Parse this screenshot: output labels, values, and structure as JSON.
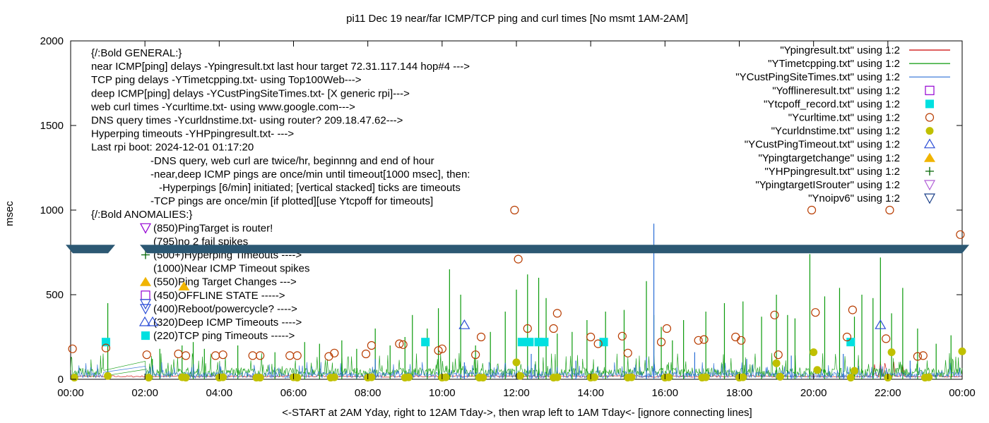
{
  "chart_data": {
    "type": "scatter",
    "title": "pi11 Dec 19  near/far ICMP/TCP ping and curl times [No msmt 1AM-2AM]",
    "xlabel": "<-START at 2AM Yday, right to 12AM Tday->, then wrap left to 1AM Tday<- [ignore connecting lines]",
    "ylabel": "msec",
    "xlim": [
      0,
      24
    ],
    "ylim": [
      0,
      2000
    ],
    "x_tick_labels": [
      "00:00",
      "02:00",
      "04:00",
      "06:00",
      "08:00",
      "10:00",
      "12:00",
      "14:00",
      "16:00",
      "18:00",
      "20:00",
      "22:00",
      "00:00"
    ],
    "y_tick_labels": [
      "0",
      "500",
      "1000",
      "1500",
      "2000"
    ],
    "grid": false,
    "legend_position": "top-right",
    "annotations": [
      "{/:Bold GENERAL:}",
      "near ICMP[ping] delays -Ypingresult.txt last hour target 72.31.117.144 hop#4 --->",
      "TCP ping delays -YTimetcpping.txt- using Top100Web--->",
      "deep ICMP[ping] delays -YCustPingSiteTimes.txt- [X generic rpi]--->",
      "web curl times -Ycurltime.txt- using www.google.com--->",
      "DNS query times -Ycurldnstime.txt- using router? 209.18.47.62--->",
      "Hyperping timeouts -YHPpingresult.txt- --->",
      "Last rpi boot: 2024-12-01 01:17:20",
      "-DNS query, web curl are twice/hr, beginnng and end of hour",
      "-near,deep ICMP pings are once/min until timeout[1000 msec], then:",
      "-Hyperpings [6/min] initiated; [vertical stacked] ticks are timeouts",
      "-TCP pings are once/min [if plotted][use Ytcpoff for timeouts]",
      "{/:Bold ANOMALIES:}",
      "(850)PingTarget is router!",
      "(795)no 2 fail spikes",
      "(500+)Hyperping Timeouts ---->",
      "(1000)Near ICMP Timeout spikes",
      "(550)Ping Target Changes --->",
      "(450)OFFLINE STATE ----->",
      "(400)Reboot/powercycle? ---->",
      "(320)Deep ICMP Timeouts ---->",
      "(220)TCP ping Timeouts ----->"
    ],
    "series": [
      {
        "name": "\"Ypingresult.txt\" using 1:2",
        "style": "line",
        "color": "#cc0000",
        "baseline": 12
      },
      {
        "name": "\"YTimetcpping.txt\" using 1:2",
        "style": "line",
        "color": "#0a9a0a",
        "spikes": [
          [
            1.0,
            450
          ],
          [
            2.2,
            120
          ],
          [
            2.4,
            180
          ],
          [
            3.0,
            200
          ],
          [
            3.3,
            220
          ],
          [
            3.6,
            180
          ],
          [
            4.5,
            200
          ],
          [
            5.5,
            160
          ],
          [
            6.3,
            220
          ],
          [
            6.7,
            210
          ],
          [
            7.3,
            230
          ],
          [
            7.7,
            180
          ],
          [
            8.2,
            300
          ],
          [
            8.6,
            200
          ],
          [
            9.0,
            250
          ],
          [
            9.2,
            380
          ],
          [
            9.6,
            300
          ],
          [
            9.9,
            420
          ],
          [
            10.2,
            650
          ],
          [
            10.5,
            500
          ],
          [
            10.9,
            200
          ],
          [
            11.3,
            280
          ],
          [
            11.7,
            400
          ],
          [
            12.0,
            530
          ],
          [
            12.3,
            620
          ],
          [
            12.6,
            600
          ],
          [
            12.8,
            480
          ],
          [
            13.1,
            270
          ],
          [
            13.5,
            280
          ],
          [
            13.9,
            350
          ],
          [
            14.4,
            400
          ],
          [
            14.9,
            410
          ],
          [
            15.5,
            580
          ],
          [
            15.7,
            380
          ],
          [
            15.9,
            310
          ],
          [
            16.2,
            230
          ],
          [
            16.5,
            350
          ],
          [
            17.1,
            400
          ],
          [
            17.6,
            450
          ],
          [
            18.1,
            460
          ],
          [
            18.6,
            370
          ],
          [
            19.0,
            500
          ],
          [
            19.3,
            380
          ],
          [
            19.5,
            360
          ],
          [
            19.9,
            740
          ],
          [
            20.3,
            490
          ],
          [
            20.7,
            540
          ],
          [
            21.1,
            370
          ],
          [
            21.3,
            500
          ],
          [
            21.6,
            480
          ],
          [
            21.8,
            720
          ],
          [
            22.1,
            390
          ],
          [
            22.4,
            540
          ],
          [
            22.8,
            300
          ],
          [
            23.3,
            210
          ],
          [
            23.7,
            260
          ]
        ]
      },
      {
        "name": "\"YCustPingSiteTimes.txt\" using 1:2",
        "style": "line",
        "color": "#2b6fd6",
        "spikes": [
          [
            8.2,
            120
          ],
          [
            10.6,
            100
          ],
          [
            12.4,
            150
          ],
          [
            13.6,
            110
          ],
          [
            15.5,
            130
          ],
          [
            15.7,
            920
          ],
          [
            16.8,
            160
          ],
          [
            18.2,
            120
          ],
          [
            19.4,
            140
          ],
          [
            20.8,
            150
          ],
          [
            22.6,
            110
          ]
        ]
      },
      {
        "name": "\"Yofflineresult.txt\" using 1:2",
        "marker": "open-square",
        "color": "#9400d3",
        "points": []
      },
      {
        "name": "\"Ytcpoff_record.txt\" using 1:2",
        "marker": "filled-square",
        "color": "#00e0e0",
        "points": [
          [
            0.95,
            220
          ],
          [
            9.55,
            220
          ],
          [
            12.15,
            220
          ],
          [
            12.35,
            220
          ],
          [
            12.6,
            220
          ],
          [
            12.75,
            220
          ],
          [
            14.35,
            220
          ],
          [
            21.0,
            220
          ]
        ]
      },
      {
        "name": "\"Ycurltime.txt\" using 1:2",
        "marker": "open-circle",
        "color": "#b83c00",
        "points": [
          [
            0.05,
            180
          ],
          [
            0.95,
            185
          ],
          [
            2.05,
            145
          ],
          [
            2.9,
            150
          ],
          [
            3.1,
            140
          ],
          [
            3.9,
            140
          ],
          [
            4.1,
            145
          ],
          [
            4.9,
            140
          ],
          [
            5.1,
            140
          ],
          [
            5.9,
            140
          ],
          [
            6.1,
            140
          ],
          [
            6.95,
            135
          ],
          [
            7.1,
            155
          ],
          [
            7.95,
            150
          ],
          [
            8.1,
            200
          ],
          [
            8.85,
            210
          ],
          [
            8.95,
            205
          ],
          [
            9.9,
            170
          ],
          [
            10.0,
            180
          ],
          [
            10.9,
            145
          ],
          [
            11.05,
            250
          ],
          [
            11.95,
            1000
          ],
          [
            12.05,
            710
          ],
          [
            12.3,
            300
          ],
          [
            13.0,
            300
          ],
          [
            13.1,
            390
          ],
          [
            14.0,
            250
          ],
          [
            14.2,
            210
          ],
          [
            14.85,
            255
          ],
          [
            15.0,
            155
          ],
          [
            15.9,
            220
          ],
          [
            16.05,
            300
          ],
          [
            16.9,
            230
          ],
          [
            17.05,
            235
          ],
          [
            17.9,
            250
          ],
          [
            18.05,
            230
          ],
          [
            18.95,
            380
          ],
          [
            19.05,
            145
          ],
          [
            19.95,
            1000
          ],
          [
            20.05,
            395
          ],
          [
            20.9,
            250
          ],
          [
            21.05,
            410
          ],
          [
            21.95,
            240
          ],
          [
            22.05,
            1000
          ],
          [
            22.8,
            135
          ],
          [
            22.95,
            140
          ],
          [
            23.95,
            855
          ]
        ]
      },
      {
        "name": "\"Ycurldnstime.txt\" using 1:2",
        "marker": "filled-circle",
        "color": "#c0c000",
        "points": [
          [
            0.1,
            10
          ],
          [
            1.0,
            20
          ],
          [
            2.1,
            10
          ],
          [
            3.0,
            12
          ],
          [
            3.1,
            10
          ],
          [
            4.0,
            10
          ],
          [
            4.1,
            12
          ],
          [
            5.0,
            10
          ],
          [
            5.1,
            10
          ],
          [
            6.0,
            12
          ],
          [
            6.1,
            10
          ],
          [
            7.0,
            10
          ],
          [
            7.1,
            12
          ],
          [
            8.0,
            10
          ],
          [
            8.1,
            12
          ],
          [
            9.0,
            10
          ],
          [
            9.1,
            12
          ],
          [
            10.0,
            10
          ],
          [
            10.1,
            12
          ],
          [
            11.0,
            10
          ],
          [
            11.1,
            10
          ],
          [
            12.0,
            100
          ],
          [
            12.1,
            20
          ],
          [
            13.0,
            10
          ],
          [
            13.1,
            12
          ],
          [
            14.0,
            10
          ],
          [
            14.1,
            12
          ],
          [
            15.0,
            10
          ],
          [
            15.1,
            12
          ],
          [
            16.0,
            10
          ],
          [
            16.1,
            12
          ],
          [
            17.0,
            10
          ],
          [
            17.1,
            12
          ],
          [
            18.0,
            10
          ],
          [
            18.1,
            12
          ],
          [
            19.0,
            95
          ],
          [
            19.1,
            15
          ],
          [
            20.0,
            160
          ],
          [
            20.1,
            55
          ],
          [
            21.0,
            10
          ],
          [
            21.1,
            50
          ],
          [
            22.0,
            10
          ],
          [
            22.1,
            160
          ],
          [
            23.0,
            10
          ],
          [
            23.1,
            12
          ],
          [
            24.0,
            165
          ]
        ]
      },
      {
        "name": "\"YCustPingTimeout.txt\" using 1:2",
        "marker": "open-triangle-up",
        "color": "#2b4dd6",
        "points": [
          [
            10.6,
            320
          ],
          [
            21.8,
            320
          ]
        ]
      },
      {
        "name": "\"Ypingtargetchange\" using 1:2",
        "marker": "filled-triangle-up",
        "color": "#f0b400",
        "points": [
          [
            3.05,
            550
          ]
        ]
      },
      {
        "name": "\"YHPpingresult.txt\" using 1:2",
        "marker": "plus",
        "color": "#006400",
        "points": []
      },
      {
        "name": "\"YpingtargetISrouter\" using 1:2",
        "marker": "open-triangle-down",
        "color": "#b05ed6",
        "points": []
      },
      {
        "name": "\"Ynoipv6\" using 1:2",
        "marker": "open-triangle-down",
        "color": "#1a3f88",
        "points": []
      }
    ]
  }
}
